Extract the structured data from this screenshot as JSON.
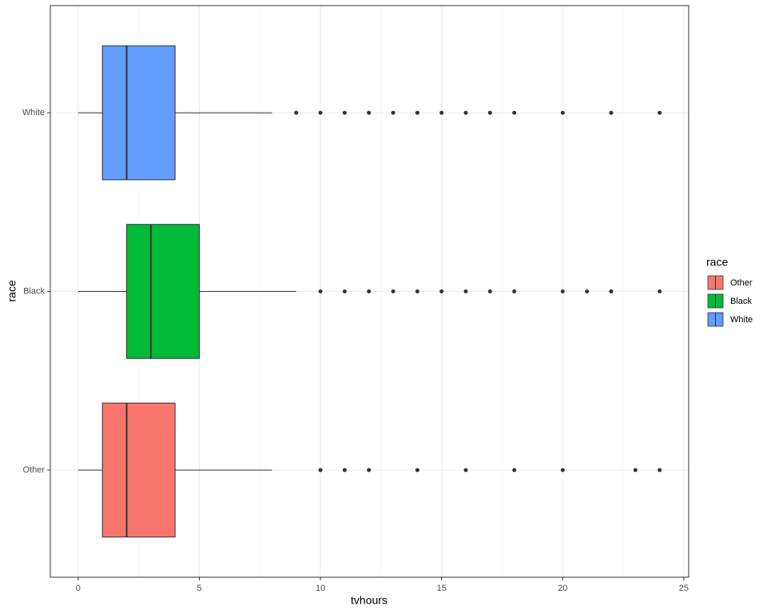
{
  "chart_data": {
    "type": "boxplot",
    "orientation": "horizontal",
    "x_label": "tvhours",
    "y_label": "race",
    "legend_title": "race",
    "categories": [
      "Other",
      "Black",
      "White"
    ],
    "series": [
      {
        "name": "Other",
        "color": "#F8766D",
        "min": 0,
        "q1": 1,
        "median": 2,
        "q3": 4,
        "max": 8,
        "outliers": [
          10,
          11,
          12,
          14,
          16,
          18,
          20,
          23,
          24
        ]
      },
      {
        "name": "Black",
        "color": "#00BA38",
        "min": 0,
        "q1": 2,
        "median": 3,
        "q3": 5,
        "max": 9,
        "outliers": [
          10,
          11,
          12,
          13,
          14,
          15,
          16,
          17,
          18,
          20,
          21,
          22,
          24
        ]
      },
      {
        "name": "White",
        "color": "#619CFF",
        "min": 0,
        "q1": 1,
        "median": 2,
        "q3": 4,
        "max": 8,
        "outliers": [
          9,
          10,
          11,
          12,
          13,
          14,
          15,
          16,
          17,
          18,
          20,
          22,
          24
        ]
      }
    ],
    "xlim": [
      -1.15,
      25.2
    ],
    "xticks": [
      0,
      5,
      10,
      15,
      20,
      25
    ],
    "grid": true,
    "legend": "right"
  }
}
